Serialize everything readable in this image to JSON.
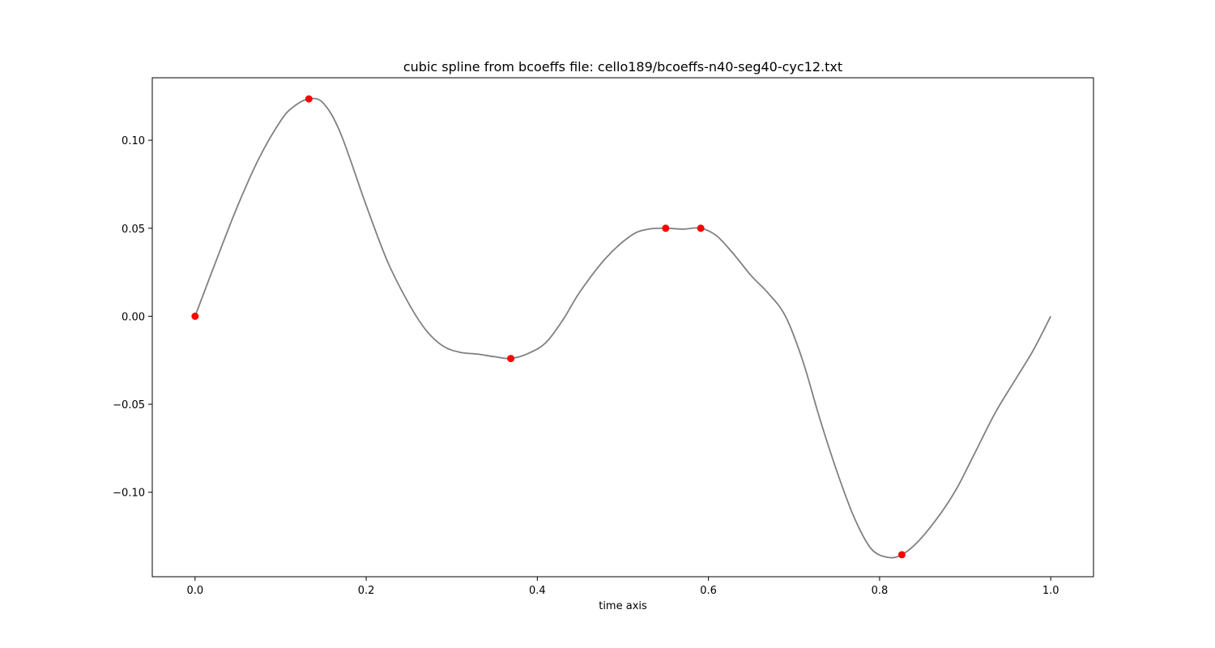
{
  "chart_data": {
    "type": "line",
    "title": "cubic spline from bcoeffs file: cello189/bcoeffs-n40-seg40-cyc12.txt",
    "xlabel": "time axis",
    "ylabel": "",
    "xlim": [
      -0.05,
      1.05
    ],
    "ylim": [
      -0.148,
      0.1355
    ],
    "x_ticks": [
      0.0,
      0.2,
      0.4,
      0.6,
      0.8,
      1.0
    ],
    "x_tick_labels": [
      "0.0",
      "0.2",
      "0.4",
      "0.6",
      "0.8",
      "1.0"
    ],
    "y_ticks": [
      -0.1,
      -0.05,
      0.0,
      0.05,
      0.1
    ],
    "y_tick_labels": [
      "−0.10",
      "−0.05",
      "0.00",
      "0.05",
      "0.10"
    ],
    "grid": false,
    "series": [
      {
        "style": "line",
        "color": "#808080",
        "x": [
          0.0,
          0.025,
          0.05,
          0.075,
          0.1,
          0.115,
          0.133,
          0.15,
          0.17,
          0.2,
          0.225,
          0.25,
          0.27,
          0.29,
          0.31,
          0.33,
          0.35,
          0.369,
          0.39,
          0.41,
          0.43,
          0.45,
          0.48,
          0.51,
          0.53,
          0.55,
          0.57,
          0.591,
          0.61,
          0.63,
          0.65,
          0.67,
          0.69,
          0.71,
          0.73,
          0.75,
          0.77,
          0.79,
          0.81,
          0.826,
          0.845,
          0.87,
          0.89,
          0.91,
          0.935,
          0.96,
          0.98,
          1.0
        ],
        "y": [
          0.0,
          0.032,
          0.063,
          0.09,
          0.111,
          0.119,
          0.1235,
          0.121,
          0.104,
          0.063,
          0.031,
          0.007,
          -0.008,
          -0.017,
          -0.0205,
          -0.0215,
          -0.023,
          -0.024,
          -0.021,
          -0.015,
          -0.002,
          0.014,
          0.033,
          0.046,
          0.0495,
          0.05,
          0.0495,
          0.05,
          0.0455,
          0.035,
          0.023,
          0.013,
          0.0,
          -0.025,
          -0.058,
          -0.088,
          -0.114,
          -0.132,
          -0.137,
          -0.1355,
          -0.128,
          -0.113,
          -0.098,
          -0.079,
          -0.055,
          -0.035,
          -0.019,
          0.0
        ]
      },
      {
        "style": "markers",
        "color": "#ff0000",
        "x": [
          0.0,
          0.133,
          0.369,
          0.55,
          0.591,
          0.826
        ],
        "y": [
          0.0,
          0.1235,
          -0.024,
          0.05,
          0.05,
          -0.1355
        ]
      }
    ]
  }
}
